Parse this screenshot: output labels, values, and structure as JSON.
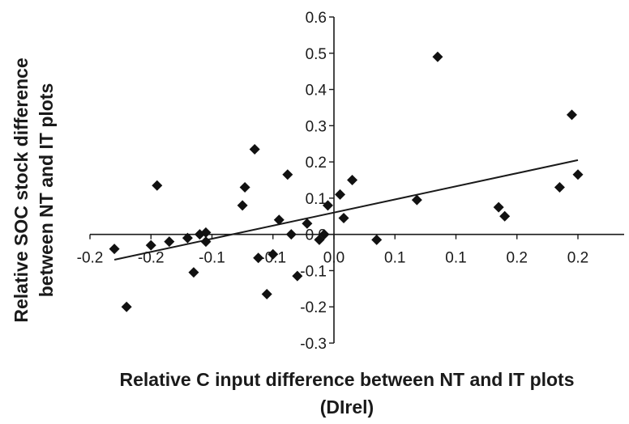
{
  "chart_data": {
    "type": "scatter",
    "xlabel_line1": "Relative C input difference between NT and IT plots",
    "xlabel_line2": "(DIrel)",
    "ylabel_line1": "Relative SOC stock difference",
    "ylabel_line2": "between NT and IT plots",
    "xlim": [
      -0.2,
      0.25
    ],
    "ylim": [
      -0.3,
      0.6
    ],
    "grid": false,
    "legend": "none",
    "x_tick_values": [
      -0.2,
      -0.15,
      -0.1,
      -0.05,
      0.0,
      0.05,
      0.1,
      0.15,
      0.2
    ],
    "x_tick_labels": [
      "-0.2",
      "-0.2",
      "-0.1",
      "-0.1",
      "0.0",
      "0.1",
      "0.1",
      "0.2",
      "0.2"
    ],
    "y_tick_values": [
      -0.3,
      -0.2,
      -0.1,
      0.0,
      0.1,
      0.2,
      0.3,
      0.4,
      0.5,
      0.6
    ],
    "y_tick_labels": [
      "-0.3",
      "-0.2",
      "-0.1",
      "0.0",
      "0.1",
      "0.2",
      "0.3",
      "0.4",
      "0.5",
      "0.6"
    ],
    "points": [
      {
        "x": -0.18,
        "y": -0.04
      },
      {
        "x": -0.17,
        "y": -0.2
      },
      {
        "x": -0.15,
        "y": -0.03
      },
      {
        "x": -0.145,
        "y": 0.135
      },
      {
        "x": -0.135,
        "y": -0.02
      },
      {
        "x": -0.12,
        "y": -0.01
      },
      {
        "x": -0.115,
        "y": -0.105
      },
      {
        "x": -0.11,
        "y": 0.0
      },
      {
        "x": -0.105,
        "y": 0.005
      },
      {
        "x": -0.105,
        "y": -0.02
      },
      {
        "x": -0.075,
        "y": 0.08
      },
      {
        "x": -0.073,
        "y": 0.13
      },
      {
        "x": -0.065,
        "y": 0.235
      },
      {
        "x": -0.062,
        "y": -0.065
      },
      {
        "x": -0.055,
        "y": -0.165
      },
      {
        "x": -0.05,
        "y": -0.055
      },
      {
        "x": -0.045,
        "y": 0.04
      },
      {
        "x": -0.038,
        "y": 0.165
      },
      {
        "x": -0.035,
        "y": 0.0
      },
      {
        "x": -0.03,
        "y": -0.115
      },
      {
        "x": -0.022,
        "y": 0.03
      },
      {
        "x": -0.012,
        "y": -0.015
      },
      {
        "x": -0.008,
        "y": 0.0
      },
      {
        "x": -0.005,
        "y": 0.08
      },
      {
        "x": 0.005,
        "y": 0.11
      },
      {
        "x": 0.008,
        "y": 0.045
      },
      {
        "x": 0.015,
        "y": 0.15
      },
      {
        "x": 0.035,
        "y": -0.015
      },
      {
        "x": 0.068,
        "y": 0.095
      },
      {
        "x": 0.085,
        "y": 0.49
      },
      {
        "x": 0.135,
        "y": 0.075
      },
      {
        "x": 0.14,
        "y": 0.05
      },
      {
        "x": 0.185,
        "y": 0.13
      },
      {
        "x": 0.195,
        "y": 0.33
      },
      {
        "x": 0.2,
        "y": 0.165
      }
    ],
    "trendline": [
      {
        "x": -0.18,
        "y": -0.07
      },
      {
        "x": 0.2,
        "y": 0.205
      }
    ]
  }
}
